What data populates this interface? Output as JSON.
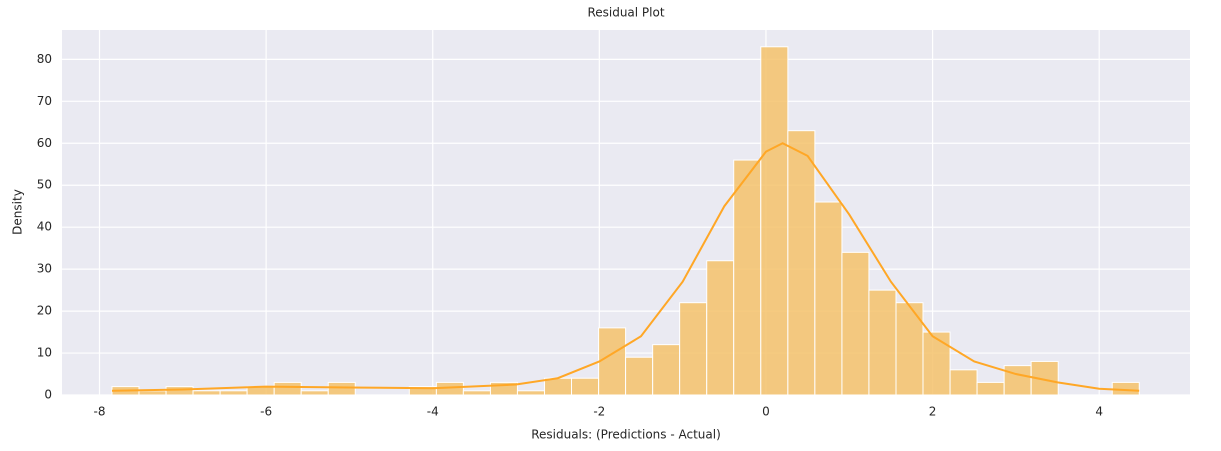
{
  "chart_data": {
    "type": "histogram",
    "title": "Residual Plot",
    "xlabel": "Residuals: (Predictions - Actual)",
    "ylabel": "Density",
    "bins": [
      -7.85,
      -7.526,
      -7.201,
      -6.877,
      -6.552,
      -6.228,
      -5.903,
      -5.579,
      -5.254,
      -4.93,
      -4.605,
      -4.281,
      -3.956,
      -3.632,
      -3.307,
      -2.983,
      -2.658,
      -2.334,
      -2.009,
      -1.685,
      -1.36,
      -1.036,
      -0.711,
      -0.387,
      -0.062,
      0.263,
      0.587,
      0.912,
      1.236,
      1.561,
      1.885,
      2.21,
      2.534,
      2.859,
      3.183,
      3.508,
      3.832,
      4.157,
      4.481
    ],
    "counts": [
      2,
      1,
      2,
      1,
      1,
      2,
      3,
      1,
      3,
      0,
      0,
      2,
      3,
      1,
      3,
      1,
      4,
      4,
      16,
      9,
      12,
      22,
      32,
      56,
      83,
      63,
      46,
      34,
      25,
      22,
      15,
      6,
      3,
      7,
      8,
      0,
      0,
      3
    ],
    "color": "#f5c26b",
    "kde": {
      "color": "#ffa726",
      "x": [
        -7.85,
        -7,
        -6,
        -5,
        -4,
        -3,
        -2.5,
        -2,
        -1.5,
        -1,
        -0.5,
        0,
        0.2,
        0.5,
        1,
        1.5,
        2,
        2.5,
        3,
        3.5,
        4,
        4.48
      ],
      "values": [
        1,
        1.3,
        2,
        1.8,
        1.6,
        2.5,
        4,
        8,
        14,
        27,
        45,
        58,
        60,
        57,
        43,
        27,
        14,
        8,
        5,
        3,
        1.5,
        1
      ]
    },
    "xlim": [
      -8.45,
      5.09
    ],
    "ylim": [
      0,
      87
    ],
    "xticks": [
      -8,
      -6,
      -4,
      -2,
      0,
      2,
      4
    ],
    "yticks": [
      0,
      10,
      20,
      30,
      40,
      50,
      60,
      70,
      80
    ],
    "grid": true
  }
}
